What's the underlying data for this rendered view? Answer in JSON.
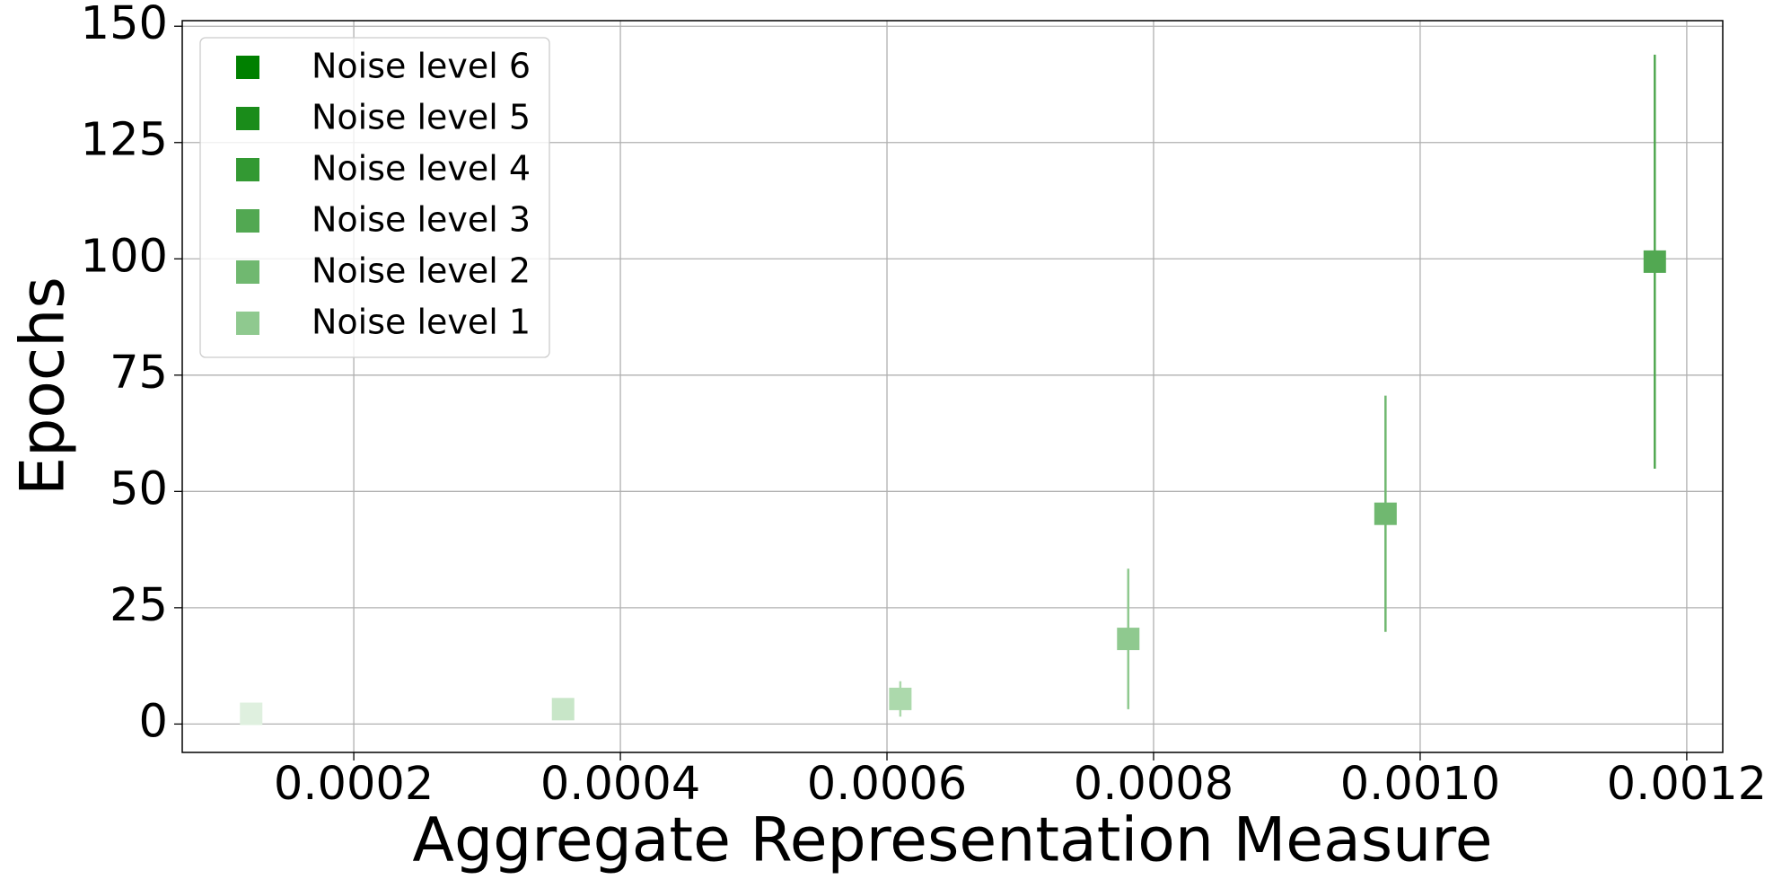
{
  "chart_data": {
    "type": "scatter",
    "x_label": "Aggregate Representation Measure",
    "y_label": "Epochs",
    "x": [
      0.000123,
      0.000357,
      0.00061,
      0.000781,
      0.000974,
      0.001176
    ],
    "values": [
      2.2,
      3.2,
      5.4,
      18.3,
      45.2,
      99.4
    ],
    "errors": [
      0,
      0,
      3.8,
      15.1,
      25.4,
      44.5
    ],
    "colors": [
      "#dff0df",
      "#c8e6c8",
      "#acd9ac",
      "#8fc98f",
      "#70b870",
      "#52a852"
    ],
    "legend": [
      {
        "name": "Noise level 6",
        "color": "#008000"
      },
      {
        "name": "Noise level 5",
        "color": "#1a8c1a"
      },
      {
        "name": "Noise level 4",
        "color": "#339933"
      },
      {
        "name": "Noise level 3",
        "color": "#52a852"
      },
      {
        "name": "Noise level 2",
        "color": "#70b870"
      },
      {
        "name": "Noise level 1",
        "color": "#8fc98f"
      }
    ],
    "legend_position": "upper left",
    "xlim": [
      7.13e-05,
      0.001227
    ],
    "ylim": [
      -6.1,
      151.2
    ],
    "xticks": [
      {
        "value": 0.0002,
        "label": "0.0002"
      },
      {
        "value": 0.0004,
        "label": "0.0004"
      },
      {
        "value": 0.0006,
        "label": "0.0006"
      },
      {
        "value": 0.0008,
        "label": "0.0008"
      },
      {
        "value": 0.001,
        "label": "0.0010"
      },
      {
        "value": 0.0012,
        "label": "0.0012"
      }
    ],
    "yticks": [
      0,
      25,
      50,
      75,
      100,
      125,
      150
    ],
    "grid": true
  }
}
